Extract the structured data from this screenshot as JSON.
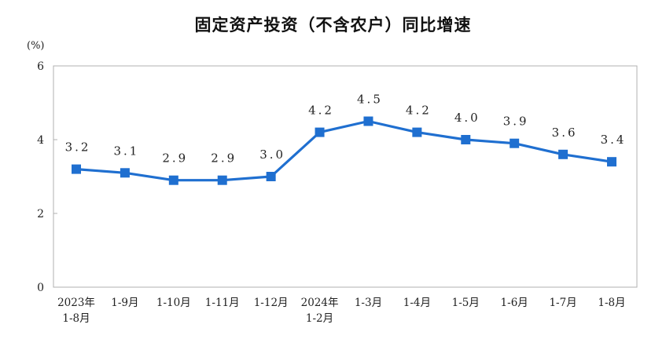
{
  "chart_data": {
    "type": "line",
    "title": "固定资产投资（不含农户）同比增速",
    "ylabel": "(%)",
    "ylim": [
      0,
      6
    ],
    "yticks": [
      "0",
      "2",
      "4",
      "6"
    ],
    "categories": [
      [
        "2023年",
        "1-8月"
      ],
      [
        "1-9月"
      ],
      [
        "1-10月"
      ],
      [
        "1-11月"
      ],
      [
        "1-12月"
      ],
      [
        "2024年",
        "1-2月"
      ],
      [
        "1-3月"
      ],
      [
        "1-4月"
      ],
      [
        "1-5月"
      ],
      [
        "1-6月"
      ],
      [
        "1-7月"
      ],
      [
        "1-8月"
      ]
    ],
    "values": [
      3.2,
      3.1,
      2.9,
      2.9,
      3.0,
      4.2,
      4.5,
      4.2,
      4.0,
      3.9,
      3.6,
      3.4
    ],
    "value_labels": [
      "3.2",
      "3.1",
      "2.9",
      "2.9",
      "3.0",
      "4.2",
      "4.5",
      "4.2",
      "4.0",
      "3.9",
      "3.6",
      "3.4"
    ],
    "grid": false,
    "legend": "none",
    "line_color": "#1f6fd0",
    "marker_color": "#1f6fd0"
  }
}
